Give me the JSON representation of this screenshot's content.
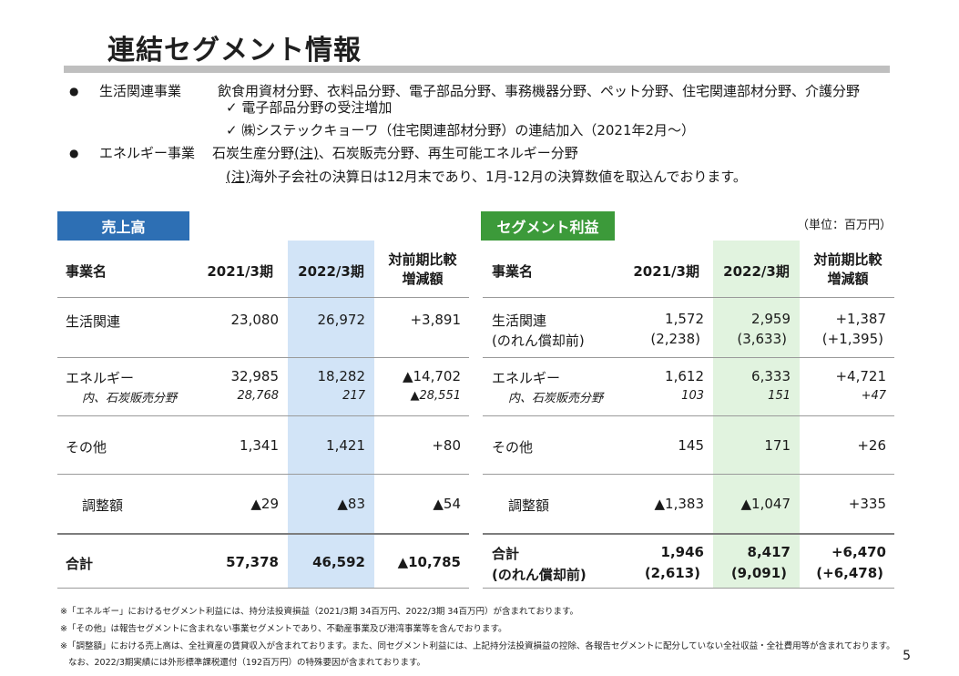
{
  "page": {
    "title": "連結セグメント情報",
    "page_number": "5"
  },
  "segments_intro": {
    "life_name": "生活関連事業",
    "life_desc": "飲食用資材分野、衣料品分野、電子部品分野、事務機器分野、ペット分野、住宅関連部材分野、介護分野",
    "life_sub1": "✓ 電子部品分野の受注増加",
    "life_sub2": "✓ ㈱システックキョーワ（住宅関連部材分野）の連結加入（2021年2月～）",
    "energy_name": "エネルギー事業",
    "energy_desc_a": "石炭生産分野",
    "energy_desc_note": "(注)",
    "energy_desc_b": "、石炭販売分野、再生可能エネルギー分野",
    "energy_note_mark": "(注)",
    "energy_note_text": "海外子会社の決算日は12月末であり、1月-12月の決算数値を取込んでおります。"
  },
  "sales": {
    "badge": "売上高",
    "headers": {
      "name": "事業名",
      "fy2021": "2021/3期",
      "fy2022": "2022/3期",
      "diff_line1": "対前期比較",
      "diff_line2": "増減額"
    },
    "rows": [
      {
        "name": "生活関連",
        "fy2021": "23,080",
        "fy2022": "26,972",
        "diff": "+3,891"
      },
      {
        "name": "エネルギー",
        "sub": "内、石炭販売分野",
        "fy2021": "32,985",
        "fy2021_sub": "28,768",
        "fy2022": "18,282",
        "fy2022_sub": "217",
        "diff": "▲14,702",
        "diff_sub": "▲28,551"
      },
      {
        "name": "その他",
        "fy2021": "1,341",
        "fy2022": "1,421",
        "diff": "+80"
      },
      {
        "name": "調整額",
        "fy2021": "▲29",
        "fy2022": "▲83",
        "diff": "▲54"
      },
      {
        "name": "合計",
        "fy2021": "57,378",
        "fy2022": "46,592",
        "diff": "▲10,785"
      }
    ]
  },
  "profit": {
    "badge": "セグメント利益",
    "unit": "（単位：百万円）",
    "headers": {
      "name": "事業名",
      "fy2021": "2021/3期",
      "fy2022": "2022/3期",
      "diff_line1": "対前期比較",
      "diff_line2": "増減額"
    },
    "rows": [
      {
        "name": "生活関連",
        "name2": "(のれん償却前)",
        "fy2021": "1,572",
        "fy2021_b": "(2,238)",
        "fy2022": "2,959",
        "fy2022_b": "(3,633)",
        "diff": "+1,387",
        "diff_b": "(+1,395)"
      },
      {
        "name": "エネルギー",
        "sub": "内、石炭販売分野",
        "fy2021": "1,612",
        "fy2021_sub": "103",
        "fy2022": "6,333",
        "fy2022_sub": "151",
        "diff": "+4,721",
        "diff_sub": "+47"
      },
      {
        "name": "その他",
        "fy2021": "145",
        "fy2022": "171",
        "diff": "+26"
      },
      {
        "name": "調整額",
        "fy2021": "▲1,383",
        "fy2022": "▲1,047",
        "diff": "+335"
      },
      {
        "name": "合計",
        "name2": "(のれん償却前)",
        "fy2021": "1,946",
        "fy2021_b": "(2,613)",
        "fy2022": "8,417",
        "fy2022_b": "(9,091)",
        "diff": "+6,470",
        "diff_b": "(+6,478)"
      }
    ]
  },
  "notes": [
    "※「エネルギー」におけるセグメント利益には、持分法投資損益（2021/3期 34百万円、2022/3期 34百万円）が含まれております。",
    "※「その他」は報告セグメントに含まれない事業セグメントであり、不動産事業及び港湾事業等を含んでおります。",
    "※「調整額」における売上高は、全社資産の賃貸収入が含まれております。また、同セグメント利益には、上記持分法投資損益の控除、各報告セグメントに配分していない全社収益・全社費用等が含まれております。",
    "なお、2022/3期実績には外形標準課税還付（192百万円）の特殊要因が含まれております。"
  ]
}
